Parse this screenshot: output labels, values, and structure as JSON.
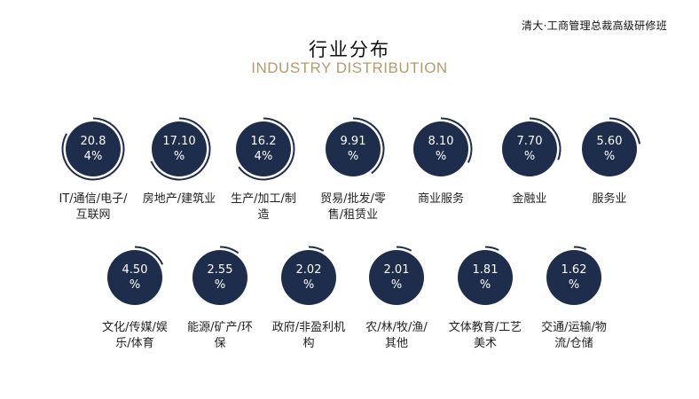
{
  "header": {
    "brand": "清大·工商管理总裁高级研修班",
    "title_cn": "行业分布",
    "title_en": "INDUSTRY DISTRIBUTION"
  },
  "colors": {
    "circle": "#1f2d4d",
    "arc": "#1f2d4d",
    "accent_gold": "#b89a6a"
  },
  "chart_data": {
    "type": "pie",
    "title": "行业分布",
    "subtitle": "INDUSTRY DISTRIBUTION",
    "unit": "%",
    "items": [
      {
        "label": "IT/通信/电子/\n互联网",
        "value": 20.84,
        "display": "20.8\n4%"
      },
      {
        "label": "房地产/建筑业",
        "value": 17.1,
        "display": "17.10\n%"
      },
      {
        "label": "生产/加工/制\n造",
        "value": 16.24,
        "display": "16.2\n4%"
      },
      {
        "label": "贸易/批发/零\n售/租赁业",
        "value": 9.91,
        "display": "9.91\n%"
      },
      {
        "label": "商业服务",
        "value": 8.1,
        "display": "8.10\n%"
      },
      {
        "label": "金融业",
        "value": 7.7,
        "display": "7.70\n%"
      },
      {
        "label": "服务业",
        "value": 5.6,
        "display": "5.60\n%"
      },
      {
        "label": "文化/传媒/娱\n乐/体育",
        "value": 4.5,
        "display": "4.50\n%"
      },
      {
        "label": "能源/矿产/环\n保",
        "value": 2.55,
        "display": "2.55\n%"
      },
      {
        "label": "政府/非盈利机\n构",
        "value": 2.02,
        "display": "2.02\n%"
      },
      {
        "label": "农/林/牧/渔/\n其他",
        "value": 2.01,
        "display": "2.01\n%"
      },
      {
        "label": "文体教育/工艺\n美术",
        "value": 1.81,
        "display": "1.81\n%"
      },
      {
        "label": "交通/运输/物\n流/仓储",
        "value": 1.62,
        "display": "1.62\n%"
      }
    ]
  }
}
